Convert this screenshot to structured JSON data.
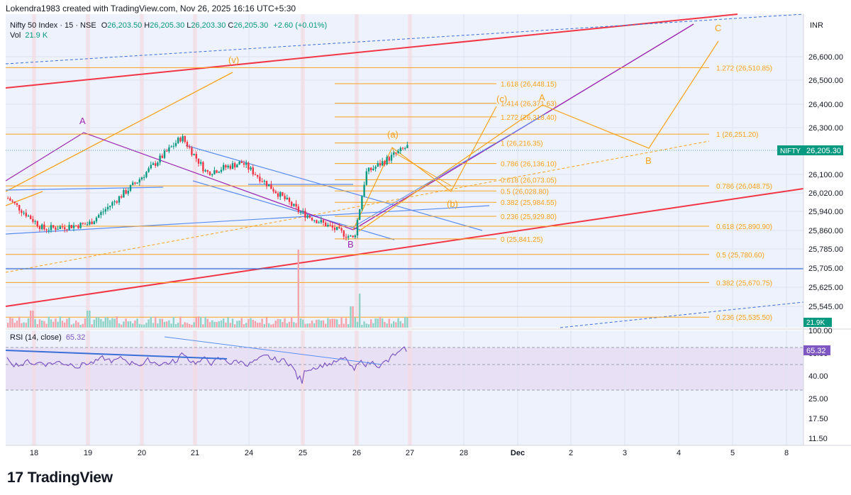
{
  "header": {
    "credit": "Lokendra1983 created with TradingView.com, Nov 26, 2025 16:16 UTC+5:30",
    "symbol": "Nifty 50 Index · 15 · NSE",
    "open_label": "O",
    "open": "26,203.50",
    "high_label": "H",
    "high": "26,205.30",
    "low_label": "L",
    "low": "26,203.30",
    "close_label": "C",
    "close": "26,205.30",
    "change": "+2.60 (+0.01%)",
    "vol_label": "Vol",
    "vol_value": "21.9 K"
  },
  "price_axis": {
    "currency": "INR",
    "ticks": [
      "26,600.00",
      "26,500.00",
      "26,400.00",
      "26,300.00",
      "26,100.00",
      "26,020.00",
      "25,940.00",
      "25,860.00",
      "25,785.00",
      "25,705.00",
      "25,625.00",
      "25,545.00"
    ],
    "last_price_symbol": "NIFTY",
    "last_price": "26,205.30",
    "volume_badge": "21.9K"
  },
  "rsi": {
    "label": "RSI (14, close)",
    "value": "65.32",
    "ticks": [
      "100.00",
      "60.00",
      "40.00",
      "25.00",
      "17.50",
      "11.50"
    ]
  },
  "time_axis": {
    "labels": [
      "18",
      "19",
      "20",
      "21",
      "24",
      "25",
      "26",
      "27",
      "28",
      "Dec",
      "2",
      "3",
      "4",
      "5",
      "8"
    ]
  },
  "fib_left": [
    {
      "ratio": "1.618",
      "value": "26,448.15"
    },
    {
      "ratio": "1.414",
      "value": "26,371.63"
    },
    {
      "ratio": "1.272",
      "value": "26,318.40"
    },
    {
      "ratio": "1",
      "value": "26,216.35"
    },
    {
      "ratio": "0.786",
      "value": "26,136.10"
    },
    {
      "ratio": "0.618",
      "value": "26,073.05"
    },
    {
      "ratio": "0.5",
      "value": "26,028.80"
    },
    {
      "ratio": "0.382",
      "value": "25,984.55"
    },
    {
      "ratio": "0.236",
      "value": "25,929.80"
    },
    {
      "ratio": "0",
      "value": "25,841.25"
    }
  ],
  "fib_right": [
    {
      "ratio": "1.272",
      "value": "26,510.85"
    },
    {
      "ratio": "1",
      "value": "26,251.20"
    },
    {
      "ratio": "0.786",
      "value": "26,048.75"
    },
    {
      "ratio": "0.618",
      "value": "25,890.90"
    },
    {
      "ratio": "0.5",
      "value": "25,780.60"
    },
    {
      "ratio": "0.382",
      "value": "25,670.75"
    },
    {
      "ratio": "0.236",
      "value": "25,535.50"
    }
  ],
  "wave_labels": {
    "v": "(v)",
    "a": "(a)",
    "b": "(b)",
    "c": "(c)",
    "A_purple": "A",
    "B_purple": "B",
    "A_orange": "A",
    "B_orange": "B",
    "C_orange": "C"
  },
  "branding": {
    "logo": "17",
    "name": "TradingView"
  },
  "colors": {
    "up": "#089981",
    "down": "#f23645",
    "fib": "#f7a21b",
    "channel": "#f23645",
    "trend": "#5b8ef0",
    "purple": "#9c27b0",
    "rsi": "#7e57c2",
    "bg_panel": "#eef2fc"
  },
  "chart_data": {
    "type": "candlestick",
    "symbol": "Nifty 50 Index",
    "interval": "15",
    "exchange": "NSE",
    "last_close": 26205.3,
    "ylim": [
      25500,
      26720
    ],
    "rsi_ylim": [
      0,
      100
    ],
    "rsi_levels": [
      70,
      50,
      30
    ],
    "key_price_points": [
      {
        "x": "18",
        "price": 26000
      },
      {
        "x": "18",
        "price": 25880
      },
      {
        "x": "19",
        "price": 25900
      },
      {
        "x": "20",
        "price": 26060
      },
      {
        "x": "20",
        "price": 26240
      },
      {
        "x": "21",
        "price": 26100
      },
      {
        "x": "24",
        "price": 26140
      },
      {
        "x": "25",
        "price": 25950
      },
      {
        "x": "26",
        "price": 25841.25
      },
      {
        "x": "26",
        "price": 26100
      },
      {
        "x": "27",
        "price": 26205.3
      }
    ]
  }
}
